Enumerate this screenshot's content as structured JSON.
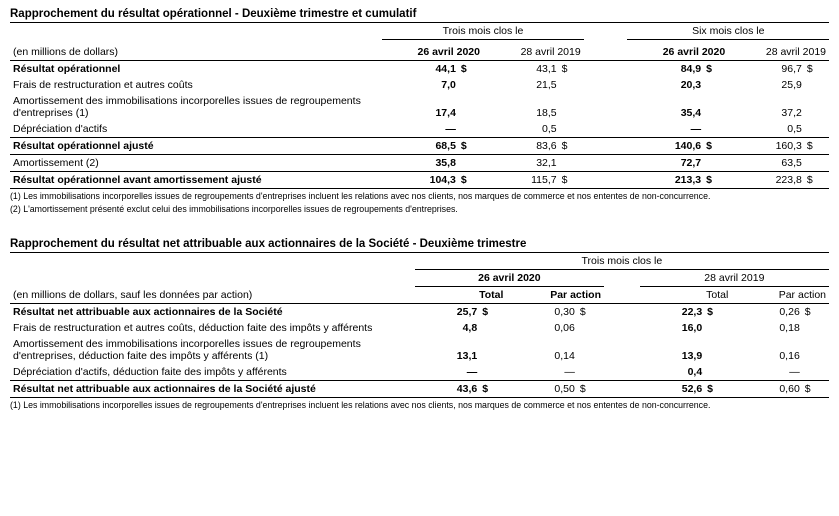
{
  "table1": {
    "title": "Rapprochement du résultat opérationnel - Deuxième trimestre et cumulatif",
    "period1": "Trois mois clos le",
    "period2": "Six mois clos le",
    "unit_note": "(en millions de dollars)",
    "col_headers": {
      "a": "26 avril 2020",
      "b": "28 avril 2019",
      "c": "26 avril 2020",
      "d": "28 avril 2019"
    },
    "currency": "$",
    "rows": [
      {
        "label": "Résultat opérationnel",
        "bold": true,
        "a": "44,1",
        "b": "43,1",
        "c": "84,9",
        "d": "96,7",
        "show_cur": true
      },
      {
        "label": "Frais de restructuration et autres coûts",
        "a": "7,0",
        "b": "21,5",
        "c": "20,3",
        "d": "25,9"
      },
      {
        "label": "Amortissement des immobilisations incorporelles issues de regroupements d'entreprises (1)",
        "a": "17,4",
        "b": "18,5",
        "c": "35,4",
        "d": "37,2"
      },
      {
        "label": "Dépréciation d'actifs",
        "a": "—",
        "b": "0,5",
        "c": "—",
        "d": "0,5"
      }
    ],
    "subtotal1": {
      "label": "Résultat opérationnel ajusté",
      "a": "68,5",
      "b": "83,6",
      "c": "140,6",
      "d": "160,3",
      "show_cur": true
    },
    "amort": {
      "label": "Amortissement (2)",
      "a": "35,8",
      "b": "32,1",
      "c": "72,7",
      "d": "63,5"
    },
    "total": {
      "label": "Résultat opérationnel avant amortissement ajusté",
      "a": "104,3",
      "b": "115,7",
      "c": "213,3",
      "d": "223,8",
      "show_cur": true
    },
    "footnotes": [
      "(1) Les immobilisations incorporelles issues de regroupements d'entreprises incluent les relations avec nos clients, nos marques de commerce et nos ententes de non-concurrence.",
      "(2) L'amortissement présenté exclut celui des immobilisations incorporelles issues de regroupements d'entreprises."
    ]
  },
  "table2": {
    "title": "Rapprochement du résultat net attribuable aux actionnaires de la Société - Deuxième trimestre",
    "period": "Trois mois clos le",
    "date1": "26 avril 2020",
    "date2": "28 avril 2019",
    "sub_total": "Total",
    "sub_per_share": "Par action",
    "unit_note": "(en millions de dollars, sauf les données par action)",
    "currency": "$",
    "rows": [
      {
        "label": "Résultat net attribuable aux actionnaires de la Société",
        "bold": true,
        "a": "25,7",
        "b": "0,30",
        "c": "22,3",
        "d": "0,26",
        "show_cur": true
      },
      {
        "label": "Frais de restructuration et autres coûts, déduction faite des impôts y afférents",
        "a": "4,8",
        "b": "0,06",
        "c": "16,0",
        "d": "0,18"
      },
      {
        "label": "Amortissement des immobilisations incorporelles issues de regroupements d'entreprises, déduction faite des impôts y afférents (1)",
        "a": "13,1",
        "b": "0,14",
        "c": "13,9",
        "d": "0,16"
      },
      {
        "label": "Dépréciation d'actifs, déduction faite des impôts y afférents",
        "a": "—",
        "b": "—",
        "c": "0,4",
        "d": "—"
      }
    ],
    "total": {
      "label": "Résultat net attribuable aux actionnaires de la Société ajusté",
      "a": "43,6",
      "b": "0,50",
      "c": "52,6",
      "d": "0,60",
      "show_cur": true
    },
    "footnote": "(1) Les immobilisations incorporelles issues de regroupements d'entreprises incluent les relations avec nos clients, nos marques de commerce et nos ententes de non-concurrence."
  }
}
